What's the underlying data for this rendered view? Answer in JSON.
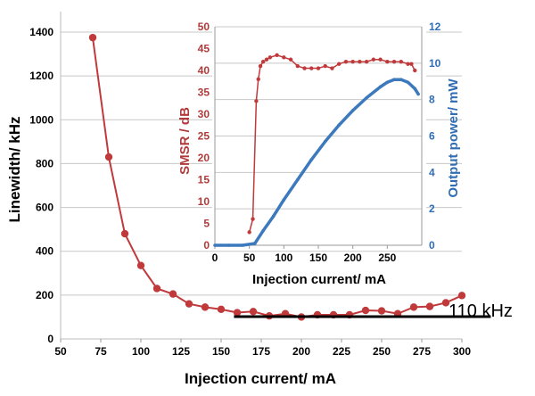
{
  "chart_data": [
    {
      "id": "main",
      "type": "line",
      "xlabel": "Injection current/ mA",
      "ylabel": "Linewidth/ kHz",
      "xlim": [
        50,
        300
      ],
      "ylim": [
        0,
        1400
      ],
      "xticks": [
        50,
        75,
        100,
        125,
        150,
        175,
        200,
        225,
        250,
        275,
        300
      ],
      "yticks": [
        0,
        200,
        400,
        600,
        800,
        1000,
        1200,
        1400
      ],
      "grid": true,
      "colors": {
        "series": "#c0393b",
        "grid": "#c8c8c8",
        "reference": "#000000"
      },
      "series": [
        {
          "x": [
            70,
            80,
            90,
            100,
            110,
            120,
            130,
            140,
            150,
            160,
            170,
            180,
            190,
            200,
            210,
            220,
            230,
            240,
            250,
            260,
            270,
            280,
            290,
            300
          ],
          "values": [
            1375,
            830,
            480,
            335,
            230,
            205,
            160,
            145,
            135,
            120,
            125,
            105,
            115,
            100,
            110,
            110,
            110,
            130,
            128,
            115,
            145,
            148,
            165,
            198
          ]
        }
      ],
      "reference_line": {
        "value": 110,
        "x_range": [
          158,
          318
        ],
        "label": "110 kHz"
      }
    },
    {
      "id": "inset",
      "type": "line",
      "xlabel": "Injection current/ mA",
      "ylabel_left": "SMSR / dB",
      "ylabel_right": "Output power/ mW",
      "xlim": [
        0,
        300
      ],
      "ylim_left": [
        0,
        50
      ],
      "ylim_right": [
        0,
        12
      ],
      "xticks": [
        0,
        50,
        100,
        150,
        200,
        250
      ],
      "yticks_left": [
        0,
        5,
        10,
        15,
        20,
        25,
        30,
        35,
        40,
        45,
        50
      ],
      "yticks_right": [
        0,
        2,
        4,
        6,
        8,
        10,
        12
      ],
      "grid": true,
      "colors": {
        "smsr": "#c0393b",
        "power": "#3c79bd",
        "grid": "#c8c8c8"
      },
      "series": [
        {
          "axis": "left",
          "x": [
            50,
            55,
            60,
            63,
            66,
            70,
            75,
            80,
            90,
            100,
            110,
            120,
            130,
            140,
            150,
            160,
            170,
            180,
            190,
            200,
            210,
            220,
            230,
            240,
            250,
            260,
            270,
            280,
            285,
            290
          ],
          "values": [
            3,
            6,
            33,
            38,
            41,
            42,
            42.5,
            43,
            43.5,
            43,
            42.5,
            41,
            40.5,
            40.5,
            40.5,
            41,
            40.5,
            41.5,
            42,
            42,
            42,
            42,
            42.5,
            42.5,
            42,
            42,
            42,
            41.5,
            41.5,
            40
          ]
        },
        {
          "axis": "right",
          "x": [
            0,
            20,
            40,
            58,
            70,
            85,
            100,
            120,
            140,
            160,
            180,
            200,
            220,
            240,
            250,
            260,
            270,
            280,
            290,
            295
          ],
          "values": [
            0,
            0,
            0,
            0.1,
            0.8,
            1.6,
            2.5,
            3.6,
            4.7,
            5.7,
            6.6,
            7.4,
            8.1,
            8.7,
            8.95,
            9.1,
            9.1,
            8.95,
            8.6,
            8.3
          ]
        }
      ]
    }
  ]
}
